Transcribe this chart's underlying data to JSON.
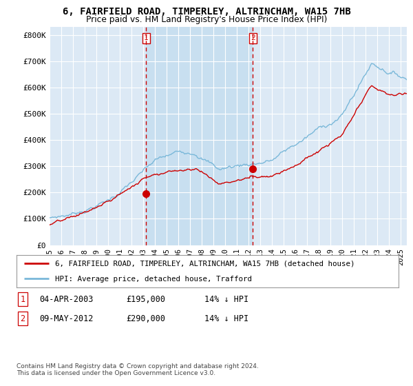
{
  "title": "6, FAIRFIELD ROAD, TIMPERLEY, ALTRINCHAM, WA15 7HB",
  "subtitle": "Price paid vs. HM Land Registry's House Price Index (HPI)",
  "ylabel_ticks": [
    "£0",
    "£100K",
    "£200K",
    "£300K",
    "£400K",
    "£500K",
    "£600K",
    "£700K",
    "£800K"
  ],
  "ytick_values": [
    0,
    100000,
    200000,
    300000,
    400000,
    500000,
    600000,
    700000,
    800000
  ],
  "ylim": [
    0,
    830000
  ],
  "xlim_start": 1995.0,
  "xlim_end": 2025.5,
  "xtick_years": [
    1995,
    1996,
    1997,
    1998,
    1999,
    2000,
    2001,
    2002,
    2003,
    2004,
    2005,
    2006,
    2007,
    2008,
    2009,
    2010,
    2011,
    2012,
    2013,
    2014,
    2015,
    2016,
    2017,
    2018,
    2019,
    2020,
    2021,
    2022,
    2023,
    2024,
    2025
  ],
  "sale1_x": 2003.25,
  "sale1_y": 195000,
  "sale2_x": 2012.36,
  "sale2_y": 290000,
  "hpi_color": "#7ab8d9",
  "price_color": "#cc0000",
  "vline_color": "#cc0000",
  "marker_color": "#cc0000",
  "shade_color": "#c8dff0",
  "legend_line1": "6, FAIRFIELD ROAD, TIMPERLEY, ALTRINCHAM, WA15 7HB (detached house)",
  "legend_line2": "HPI: Average price, detached house, Trafford",
  "table_rows": [
    {
      "num": "1",
      "date": "04-APR-2003",
      "price": "£195,000",
      "hpi": "14% ↓ HPI"
    },
    {
      "num": "2",
      "date": "09-MAY-2012",
      "price": "£290,000",
      "hpi": "14% ↓ HPI"
    }
  ],
  "footnote": "Contains HM Land Registry data © Crown copyright and database right 2024.\nThis data is licensed under the Open Government Licence v3.0.",
  "bg_color": "#ffffff",
  "plot_bg_color": "#dce9f5",
  "grid_color": "#ffffff"
}
